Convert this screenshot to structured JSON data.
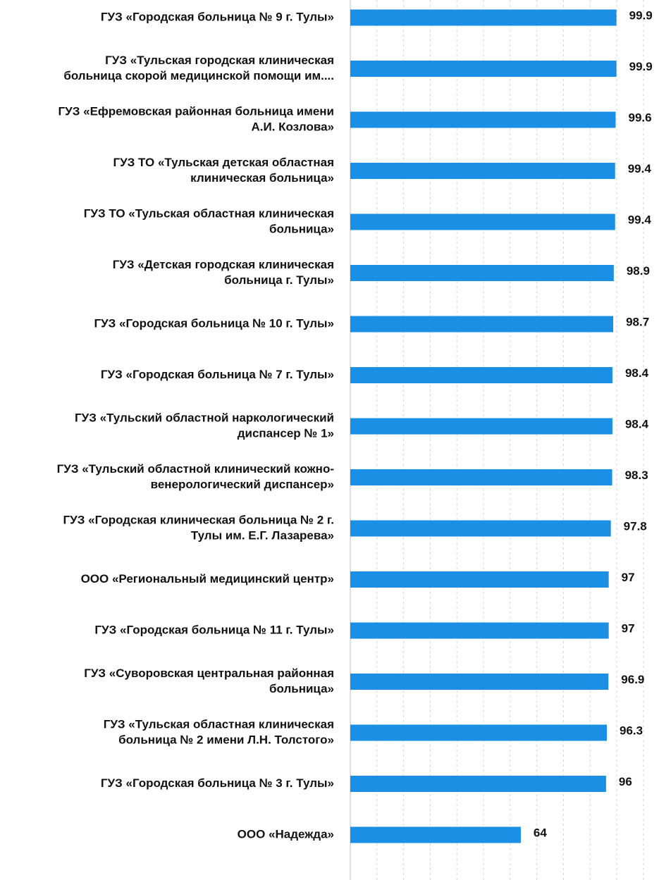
{
  "chart_data": {
    "type": "bar",
    "orientation": "horizontal",
    "title": "",
    "xlabel": "",
    "ylabel": "",
    "xlim": [
      0,
      100
    ],
    "grid": true,
    "legend": "none",
    "bar_color": "#1a8fe3",
    "categories": [
      "ГУЗ «Городская больница № 9 г. Тулы»",
      "ГУЗ «Тульская городская клиническая больница скорой медицинской помощи им....",
      "ГУЗ «Ефремовская районная больница имени А.И. Козлова»",
      "ГУЗ ТО «Тульская детская областная клиническая больница»",
      "ГУЗ ТО «Тульская областная клиническая больница»",
      "ГУЗ «Детская городская клиническая больница г. Тулы»",
      "ГУЗ «Городская больница № 10 г. Тулы»",
      "ГУЗ «Городская больница № 7 г. Тулы»",
      "ГУЗ «Тульский областной наркологический диспансер № 1»",
      "ГУЗ «Тульский областной клинический кожно-венерологический диспансер»",
      "ГУЗ «Городская клиническая больница № 2 г. Тулы им. Е.Г. Лазарева»",
      "ООО «Региональный медицинский центр»",
      "ГУЗ «Городская больница № 11 г. Тулы»",
      "ГУЗ «Суворовская центральная районная больница»",
      "ГУЗ «Тульская областная клиническая больница № 2 имени Л.Н. Толстого»",
      "ГУЗ «Городская больница № 3 г. Тулы»",
      "ООО «Надежда»"
    ],
    "label_lines": [
      [
        "ГУЗ «Городская больница № 9 г. Тулы»"
      ],
      [
        "ГУЗ «Тульская городская клиническая",
        "больница скорой медицинской помощи им...."
      ],
      [
        "ГУЗ «Ефремовская районная больница имени",
        "А.И. Козлова»"
      ],
      [
        "ГУЗ ТО «Тульская детская областная",
        "клиническая больница»"
      ],
      [
        "ГУЗ ТО «Тульская областная клиническая",
        "больница»"
      ],
      [
        "ГУЗ «Детская городская клиническая",
        "больница г. Тулы»"
      ],
      [
        "ГУЗ «Городская больница № 10 г. Тулы»"
      ],
      [
        "ГУЗ «Городская больница № 7 г. Тулы»"
      ],
      [
        "ГУЗ «Тульский областной наркологический",
        "диспансер № 1»"
      ],
      [
        "ГУЗ «Тульский областной клинический кожно-",
        "венерологический диспансер»"
      ],
      [
        "ГУЗ «Городская клиническая больница № 2 г.",
        "Тулы им. Е.Г. Лазарева»"
      ],
      [
        "ООО «Региональный медицинский центр»"
      ],
      [
        "ГУЗ «Городская больница № 11 г. Тулы»"
      ],
      [
        "ГУЗ «Суворовская центральная районная",
        "больница»"
      ],
      [
        "ГУЗ «Тульская областная клиническая",
        "больница № 2 имени Л.Н. Толстого»"
      ],
      [
        "ГУЗ «Городская больница № 3 г. Тулы»"
      ],
      [
        "ООО «Надежда»"
      ]
    ],
    "values": [
      99.9,
      99.9,
      99.6,
      99.4,
      99.4,
      98.9,
      98.7,
      98.4,
      98.4,
      98.3,
      97.8,
      97,
      97,
      96.9,
      96.3,
      96,
      64
    ],
    "value_labels": [
      "99.9",
      "99.9",
      "99.6",
      "99.4",
      "99.4",
      "98.9",
      "98.7",
      "98.4",
      "98.4",
      "98.3",
      "97.8",
      "97",
      "97",
      "96.9",
      "96.3",
      "96",
      "64"
    ]
  }
}
